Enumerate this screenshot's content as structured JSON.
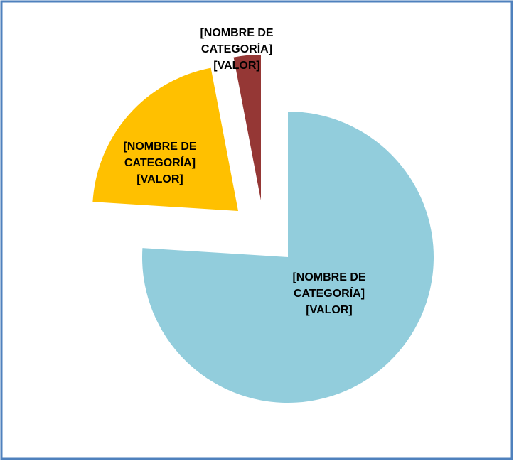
{
  "chart_data": {
    "type": "pie",
    "categories": [
      "[NOMBRE DE CATEGORÍA]",
      "[NOMBRE DE CATEGORÍA]",
      "[NOMBRE DE CATEGORÍA]"
    ],
    "values": [
      76,
      21,
      3
    ],
    "value_labels": [
      "[VALOR]",
      "[VALOR]",
      "[VALOR]"
    ],
    "colors": [
      "#92cddc",
      "#ffc000",
      "#953735"
    ]
  }
}
